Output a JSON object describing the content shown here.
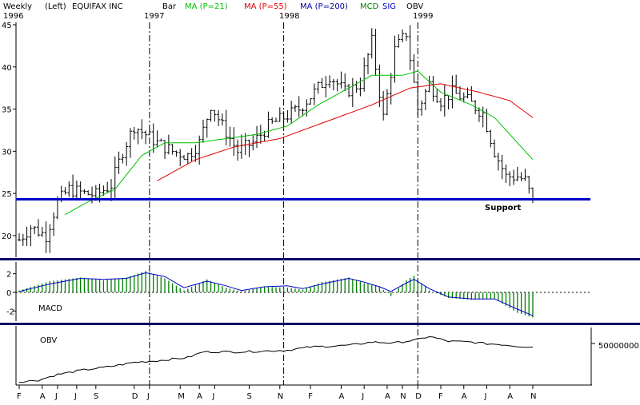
{
  "header": {
    "period": "Weekly",
    "scale_side": "(Left)",
    "company": "EQUIFAX INC",
    "bar_label": "Bar",
    "ma21_label": "MA (P=21)",
    "ma55_label": "MA (P=55)",
    "ma200_label": "MA (P=200)",
    "mcd_label": "MCD",
    "sig_label": "SIG",
    "obv_label": "OBV"
  },
  "colors": {
    "price_bars": "#000000",
    "ma21": "#00c000",
    "ma55": "#e00000",
    "ma200": "#000099",
    "support": "#0000cc",
    "macd_hist": "#008000",
    "signal": "#0000cc",
    "obv": "#000000",
    "divider": "#000066"
  },
  "chart_data": [
    {
      "type": "bar",
      "panel": "price",
      "ylim": [
        18,
        45
      ],
      "yticks": [
        20,
        25,
        30,
        35,
        40,
        45
      ],
      "year_labels": [
        "1996",
        "1997",
        "1998",
        "1999"
      ],
      "support_label": "Support",
      "support_level": 24.3,
      "ohlc_anchors": [
        {
          "week": 0,
          "close": 19.5
        },
        {
          "week": 3,
          "close": 21
        },
        {
          "week": 7,
          "close": 20
        },
        {
          "week": 10,
          "close": 24
        },
        {
          "week": 13,
          "close": 25.5
        },
        {
          "week": 17,
          "close": 25
        },
        {
          "week": 20,
          "close": 24.8
        },
        {
          "week": 24,
          "close": 26
        },
        {
          "week": 27,
          "close": 30
        },
        {
          "week": 30,
          "close": 33
        },
        {
          "week": 33,
          "close": 32
        },
        {
          "week": 36,
          "close": 31
        },
        {
          "week": 40,
          "close": 30
        },
        {
          "week": 44,
          "close": 29.5
        },
        {
          "week": 47,
          "close": 31
        },
        {
          "week": 50,
          "close": 35.5
        },
        {
          "week": 53,
          "close": 33
        },
        {
          "week": 57,
          "close": 30
        },
        {
          "week": 61,
          "close": 31
        },
        {
          "week": 65,
          "close": 33
        },
        {
          "week": 69,
          "close": 34
        },
        {
          "week": 73,
          "close": 35
        },
        {
          "week": 77,
          "close": 37
        },
        {
          "week": 81,
          "close": 39
        },
        {
          "week": 85,
          "close": 37
        },
        {
          "week": 89,
          "close": 38
        },
        {
          "week": 92,
          "close": 43
        },
        {
          "week": 95,
          "close": 34
        },
        {
          "week": 98,
          "close": 42
        },
        {
          "week": 101,
          "close": 44
        },
        {
          "week": 104,
          "close": 35
        },
        {
          "week": 107,
          "close": 38
        },
        {
          "week": 110,
          "close": 36
        },
        {
          "week": 113,
          "close": 37
        },
        {
          "week": 117,
          "close": 36
        },
        {
          "week": 121,
          "close": 34.5
        },
        {
          "week": 124,
          "close": 30
        },
        {
          "week": 127,
          "close": 27
        },
        {
          "week": 130,
          "close": 27
        },
        {
          "week": 132,
          "close": 26.5
        },
        {
          "week": 134,
          "close": 24
        }
      ],
      "ma21_anchors": [
        {
          "week": 12,
          "value": 22.5
        },
        {
          "week": 18,
          "value": 24
        },
        {
          "week": 25,
          "value": 25.5
        },
        {
          "week": 32,
          "value": 29.5
        },
        {
          "week": 38,
          "value": 31
        },
        {
          "week": 46,
          "value": 31
        },
        {
          "week": 54,
          "value": 31.5
        },
        {
          "week": 62,
          "value": 32
        },
        {
          "week": 70,
          "value": 33
        },
        {
          "week": 78,
          "value": 35.5
        },
        {
          "week": 86,
          "value": 37.5
        },
        {
          "week": 92,
          "value": 39
        },
        {
          "week": 100,
          "value": 39
        },
        {
          "week": 104,
          "value": 39.5
        },
        {
          "week": 110,
          "value": 37
        },
        {
          "week": 118,
          "value": 35.5
        },
        {
          "week": 124,
          "value": 34
        },
        {
          "week": 130,
          "value": 31
        },
        {
          "week": 134,
          "value": 29
        }
      ],
      "ma55_anchors": [
        {
          "week": 36,
          "value": 26.5
        },
        {
          "week": 46,
          "value": 29
        },
        {
          "week": 56,
          "value": 30.5
        },
        {
          "week": 68,
          "value": 31.5
        },
        {
          "week": 80,
          "value": 33.5
        },
        {
          "week": 92,
          "value": 35.5
        },
        {
          "week": 102,
          "value": 37.5
        },
        {
          "week": 110,
          "value": 38
        },
        {
          "week": 120,
          "value": 37
        },
        {
          "week": 128,
          "value": 36
        },
        {
          "week": 134,
          "value": 34
        }
      ]
    },
    {
      "type": "bar",
      "panel": "macd",
      "label": "MACD",
      "ylim": [
        -3,
        3
      ],
      "yticks": [
        2,
        0,
        -2
      ],
      "hist_anchors": [
        {
          "week": 0,
          "value": 0.2
        },
        {
          "week": 8,
          "value": 1.2
        },
        {
          "week": 16,
          "value": 1.6
        },
        {
          "week": 22,
          "value": 1.3
        },
        {
          "week": 28,
          "value": 1.6
        },
        {
          "week": 33,
          "value": 2.3
        },
        {
          "week": 38,
          "value": 1.5
        },
        {
          "week": 43,
          "value": 0.2
        },
        {
          "week": 49,
          "value": 1.4
        },
        {
          "week": 54,
          "value": 0.5
        },
        {
          "week": 58,
          "value": 0.1
        },
        {
          "week": 64,
          "value": 0.6
        },
        {
          "week": 70,
          "value": 0.5
        },
        {
          "week": 74,
          "value": 0.3
        },
        {
          "week": 79,
          "value": 1.1
        },
        {
          "week": 86,
          "value": 1.6
        },
        {
          "week": 90,
          "value": 1.0
        },
        {
          "week": 94,
          "value": 0.6
        },
        {
          "week": 97,
          "value": -0.4
        },
        {
          "week": 101,
          "value": 1.3
        },
        {
          "week": 103,
          "value": 1.8
        },
        {
          "week": 107,
          "value": 0.2
        },
        {
          "week": 112,
          "value": -0.6
        },
        {
          "week": 118,
          "value": -0.8
        },
        {
          "week": 124,
          "value": -0.7
        },
        {
          "week": 130,
          "value": -2.2
        },
        {
          "week": 134,
          "value": -2.7
        }
      ],
      "signal_anchors": [
        {
          "week": 0,
          "value": 0.1
        },
        {
          "week": 8,
          "value": 0.9
        },
        {
          "week": 16,
          "value": 1.5
        },
        {
          "week": 22,
          "value": 1.4
        },
        {
          "week": 28,
          "value": 1.5
        },
        {
          "week": 33,
          "value": 2.1
        },
        {
          "week": 38,
          "value": 1.7
        },
        {
          "week": 43,
          "value": 0.5
        },
        {
          "week": 49,
          "value": 1.2
        },
        {
          "week": 54,
          "value": 0.7
        },
        {
          "week": 58,
          "value": 0.2
        },
        {
          "week": 64,
          "value": 0.6
        },
        {
          "week": 70,
          "value": 0.7
        },
        {
          "week": 74,
          "value": 0.4
        },
        {
          "week": 79,
          "value": 0.9
        },
        {
          "week": 86,
          "value": 1.5
        },
        {
          "week": 90,
          "value": 1.1
        },
        {
          "week": 94,
          "value": 0.6
        },
        {
          "week": 97,
          "value": 0.1
        },
        {
          "week": 101,
          "value": 1.0
        },
        {
          "week": 103,
          "value": 1.4
        },
        {
          "week": 107,
          "value": 0.4
        },
        {
          "week": 112,
          "value": -0.5
        },
        {
          "week": 118,
          "value": -0.7
        },
        {
          "week": 124,
          "value": -0.7
        },
        {
          "week": 130,
          "value": -1.8
        },
        {
          "week": 134,
          "value": -2.5
        }
      ]
    },
    {
      "type": "line",
      "panel": "obv",
      "label": "OBV",
      "ylim": [
        0,
        70000000
      ],
      "ytick_label": "50000000",
      "ytick_value": 50000000,
      "anchors": [
        {
          "week": 0,
          "value": 3000000
        },
        {
          "week": 5,
          "value": 5000000
        },
        {
          "week": 10,
          "value": 12000000
        },
        {
          "week": 16,
          "value": 17000000
        },
        {
          "week": 24,
          "value": 22000000
        },
        {
          "week": 30,
          "value": 27000000
        },
        {
          "week": 36,
          "value": 29000000
        },
        {
          "week": 44,
          "value": 33000000
        },
        {
          "week": 48,
          "value": 40000000
        },
        {
          "week": 58,
          "value": 40000000
        },
        {
          "week": 70,
          "value": 42000000
        },
        {
          "week": 76,
          "value": 46000000
        },
        {
          "week": 86,
          "value": 48000000
        },
        {
          "week": 92,
          "value": 52000000
        },
        {
          "week": 98,
          "value": 51000000
        },
        {
          "week": 104,
          "value": 55000000
        },
        {
          "week": 107,
          "value": 59000000
        },
        {
          "week": 112,
          "value": 53000000
        },
        {
          "week": 118,
          "value": 52000000
        },
        {
          "week": 122,
          "value": 50000000
        },
        {
          "week": 126,
          "value": 49000000
        },
        {
          "week": 130,
          "value": 47000000
        },
        {
          "week": 134,
          "value": 46000000
        }
      ]
    }
  ],
  "x_axis": {
    "months": [
      "F",
      "A",
      "J",
      "J",
      "S",
      "D",
      "J",
      "M",
      "A",
      "J",
      "S",
      "N",
      "F",
      "A",
      "J",
      "A",
      "N",
      "D",
      "F",
      "A",
      "J",
      "A",
      "N"
    ],
    "month_weeks": [
      0,
      6,
      10,
      15,
      20,
      30,
      34,
      42,
      47,
      51,
      60,
      68,
      76,
      84,
      90,
      96,
      100,
      104,
      110,
      116,
      122,
      128,
      134
    ],
    "year_break_weeks": [
      34,
      69,
      104
    ],
    "total_weeks": 135
  }
}
